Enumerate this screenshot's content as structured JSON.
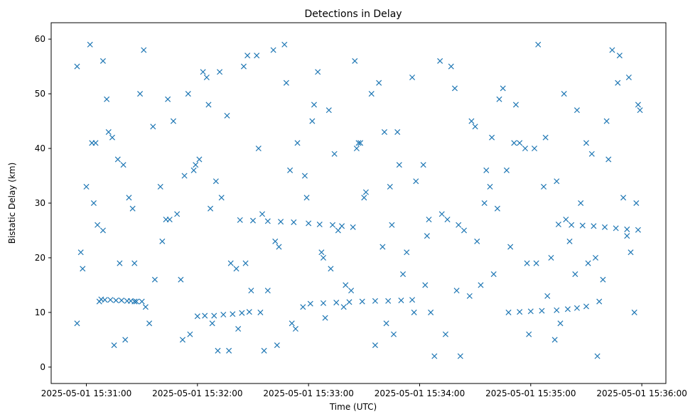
{
  "chart_data": {
    "type": "scatter",
    "title": "Detections in Delay",
    "xlabel": "Time (UTC)",
    "ylabel": "Bistatic Delay (km)",
    "marker": "x",
    "color": "#1f77b4",
    "x_format": "YYYY-MM-DD HH:MM:SS",
    "xlim": [
      "2025-05-01 15:30:41",
      "2025-05-01 15:36:13"
    ],
    "ylim": [
      -3,
      63
    ],
    "xticks": [
      "2025-05-01 15:31:00",
      "2025-05-01 15:32:00",
      "2025-05-01 15:33:00",
      "2025-05-01 15:34:00",
      "2025-05-01 15:35:00",
      "2025-05-01 15:36:00"
    ],
    "yticks": [
      0,
      10,
      20,
      30,
      40,
      50,
      60
    ],
    "grid": false,
    "legend": false,
    "series": [
      {
        "x": [
          "2025-05-01 15:31:08",
          "2025-05-01 15:31:10",
          "2025-05-01 15:31:13",
          "2025-05-01 15:31:16",
          "2025-05-01 15:31:19",
          "2025-05-01 15:31:22",
          "2025-05-01 15:31:24",
          "2025-05-01 15:31:26",
          "2025-05-01 15:32:00",
          "2025-05-01 15:32:04",
          "2025-05-01 15:32:09",
          "2025-05-01 15:32:14",
          "2025-05-01 15:32:19",
          "2025-05-01 15:32:24",
          "2025-05-01 15:32:28",
          "2025-05-01 15:32:23",
          "2025-05-01 15:32:30",
          "2025-05-01 15:32:38",
          "2025-05-01 15:32:45",
          "2025-05-01 15:32:52",
          "2025-05-01 15:33:00",
          "2025-05-01 15:33:06",
          "2025-05-01 15:33:13",
          "2025-05-01 15:33:18",
          "2025-05-01 15:33:24",
          "2025-05-01 15:33:01",
          "2025-05-01 15:33:08",
          "2025-05-01 15:33:15",
          "2025-05-01 15:33:22",
          "2025-05-01 15:33:29",
          "2025-05-01 15:33:36",
          "2025-05-01 15:33:43",
          "2025-05-01 15:33:50",
          "2025-05-01 15:33:56",
          "2025-05-01 15:34:48",
          "2025-05-01 15:34:54",
          "2025-05-01 15:35:00",
          "2025-05-01 15:35:06",
          "2025-05-01 15:35:14",
          "2025-05-01 15:35:20",
          "2025-05-01 15:35:25",
          "2025-05-01 15:35:30",
          "2025-05-01 15:35:15",
          "2025-05-01 15:35:22",
          "2025-05-01 15:35:28",
          "2025-05-01 15:35:34",
          "2025-05-01 15:35:40",
          "2025-05-01 15:35:46",
          "2025-05-01 15:35:52",
          "2025-05-01 15:35:58",
          "2025-05-01 15:30:55",
          "2025-05-01 15:30:57",
          "2025-05-01 15:30:55",
          "2025-05-01 15:31:04",
          "2025-05-01 15:31:07",
          "2025-05-01 15:31:09",
          "2025-05-01 15:31:14",
          "2025-05-01 15:31:17",
          "2025-05-01 15:31:21",
          "2025-05-01 15:31:26",
          "2025-05-01 15:31:31",
          "2025-05-01 15:31:36",
          "2025-05-01 15:31:40",
          "2025-05-01 15:31:45",
          "2025-05-01 15:31:51",
          "2025-05-01 15:31:55",
          "2025-05-01 15:31:58",
          "2025-05-01 15:32:03",
          "2025-05-01 15:32:07",
          "2025-05-01 15:32:11",
          "2025-05-01 15:32:16",
          "2025-05-01 15:32:21",
          "2025-05-01 15:32:27",
          "2025-05-01 15:32:33",
          "2025-05-01 15:32:38",
          "2025-05-01 15:32:42",
          "2025-05-01 15:32:48",
          "2025-05-01 15:32:53",
          "2025-05-01 15:32:58",
          "2025-05-01 15:33:03",
          "2025-05-01 15:33:08",
          "2025-05-01 15:33:14",
          "2025-05-01 15:33:19",
          "2025-05-01 15:33:25",
          "2025-05-01 15:33:30",
          "2025-05-01 15:33:36",
          "2025-05-01 15:33:41",
          "2025-05-01 15:33:45",
          "2025-05-01 15:33:51",
          "2025-05-01 15:33:56",
          "2025-05-01 15:34:02",
          "2025-05-01 15:34:06",
          "2025-05-01 15:34:12",
          "2025-05-01 15:34:17",
          "2025-05-01 15:34:22",
          "2025-05-01 15:34:28",
          "2025-05-01 15:34:33",
          "2025-05-01 15:34:38",
          "2025-05-01 15:34:43",
          "2025-05-01 15:34:49",
          "2025-05-01 15:34:54",
          "2025-05-01 15:34:59",
          "2025-05-01 15:35:04",
          "2025-05-01 15:35:09",
          "2025-05-01 15:35:14",
          "2025-05-01 15:35:19",
          "2025-05-01 15:35:25",
          "2025-05-01 15:35:31",
          "2025-05-01 15:35:36",
          "2025-05-01 15:35:42",
          "2025-05-01 15:35:47",
          "2025-05-01 15:35:52",
          "2025-05-01 15:35:57",
          "2025-05-01 15:31:02",
          "2025-05-01 15:31:12",
          "2025-05-01 15:31:23",
          "2025-05-01 15:31:34",
          "2025-05-01 15:31:47",
          "2025-05-01 15:32:05",
          "2025-05-01 15:32:18",
          "2025-05-01 15:32:35",
          "2025-05-01 15:32:50",
          "2025-05-01 15:33:11",
          "2025-05-01 15:33:27",
          "2025-05-01 15:33:44",
          "2025-05-01 15:34:08",
          "2025-05-01 15:34:24",
          "2025-05-01 15:34:40",
          "2025-05-01 15:35:02",
          "2025-05-01 15:35:18",
          "2025-05-01 15:35:37",
          "2025-05-01 15:35:54",
          "2025-05-01 15:31:05",
          "2025-05-01 15:31:18",
          "2025-05-01 15:31:29",
          "2025-05-01 15:31:43",
          "2025-05-01 15:31:59",
          "2025-05-01 15:32:13",
          "2025-05-01 15:32:29",
          "2025-05-01 15:32:44",
          "2025-05-01 15:33:02",
          "2025-05-01 15:33:20",
          "2025-05-01 15:33:38",
          "2025-05-01 15:33:53",
          "2025-05-01 15:34:14",
          "2025-05-01 15:34:31",
          "2025-05-01 15:34:47",
          "2025-05-01 15:35:08",
          "2025-05-01 15:35:27",
          "2025-05-01 15:35:44",
          "2025-05-01 15:35:59",
          "2025-05-01 15:30:58",
          "2025-05-01 15:31:11",
          "2025-05-01 15:31:27",
          "2025-05-01 15:31:41",
          "2025-05-01 15:31:56",
          "2025-05-01 15:32:10",
          "2025-05-01 15:32:25",
          "2025-05-01 15:32:41",
          "2025-05-01 15:32:57",
          "2025-05-01 15:33:12",
          "2025-05-01 15:33:31",
          "2025-05-01 15:33:48",
          "2025-05-01 15:34:05",
          "2025-05-01 15:34:20",
          "2025-05-01 15:34:36",
          "2025-05-01 15:34:52",
          "2025-05-01 15:35:11",
          "2025-05-01 15:35:33",
          "2025-05-01 15:35:50",
          "2025-05-01 15:31:00",
          "2025-05-01 15:31:15",
          "2025-05-01 15:31:32",
          "2025-05-01 15:31:49",
          "2025-05-01 15:32:06",
          "2025-05-01 15:32:22",
          "2025-05-01 15:32:36",
          "2025-05-01 15:32:54",
          "2025-05-01 15:33:09",
          "2025-05-01 15:33:26",
          "2025-05-01 15:33:42",
          "2025-05-01 15:33:58",
          "2025-05-01 15:34:15",
          "2025-05-01 15:34:30",
          "2025-05-01 15:34:45",
          "2025-05-01 15:35:03",
          "2025-05-01 15:35:21",
          "2025-05-01 15:35:39",
          "2025-05-01 15:35:56",
          "2025-05-01 15:31:06",
          "2025-05-01 15:31:20",
          "2025-05-01 15:31:37",
          "2025-05-01 15:31:53",
          "2025-05-01 15:32:08",
          "2025-05-01 15:32:26",
          "2025-05-01 15:32:43",
          "2025-05-01 15:32:59",
          "2025-05-01 15:33:16",
          "2025-05-01 15:33:34",
          "2025-05-01 15:33:49",
          "2025-05-01 15:34:04",
          "2025-05-01 15:34:19",
          "2025-05-01 15:34:35",
          "2025-05-01 15:34:51",
          "2025-05-01 15:35:07",
          "2025-05-01 15:35:24",
          "2025-05-01 15:35:41",
          "2025-05-01 15:35:58",
          "2025-05-01 15:31:03",
          "2025-05-01 15:31:25",
          "2025-05-01 15:31:44",
          "2025-05-01 15:32:01",
          "2025-05-01 15:32:17",
          "2025-05-01 15:32:34",
          "2025-05-01 15:32:51",
          "2025-05-01 15:33:07",
          "2025-05-01 15:33:23",
          "2025-05-01 15:33:40",
          "2025-05-01 15:33:57",
          "2025-05-01 15:34:11",
          "2025-05-01 15:34:27",
          "2025-05-01 15:34:42",
          "2025-05-01 15:34:58",
          "2025-05-01 15:35:16",
          "2025-05-01 15:35:35",
          "2025-05-01 15:35:53",
          "2025-05-01 15:31:09",
          "2025-05-01 15:31:30",
          "2025-05-01 15:31:52",
          "2025-05-01 15:32:12",
          "2025-05-01 15:32:32",
          "2025-05-01 15:32:47",
          "2025-05-01 15:33:05",
          "2025-05-01 15:33:28",
          "2025-05-01 15:33:46",
          "2025-05-01 15:34:03",
          "2025-05-01 15:34:21",
          "2025-05-01 15:34:39",
          "2025-05-01 15:34:57",
          "2025-05-01 15:35:13",
          "2025-05-01 15:35:30",
          "2025-05-01 15:35:48"
        ],
        "y": [
          12.4,
          12.3,
          12.3,
          12.2,
          12.2,
          12.1,
          12.1,
          12.0,
          9.3,
          9.4,
          9.4,
          9.6,
          9.7,
          9.9,
          10.1,
          26.9,
          26.8,
          26.7,
          26.6,
          26.5,
          26.3,
          26.1,
          26.0,
          25.8,
          25.6,
          11.6,
          11.7,
          11.8,
          11.9,
          12.0,
          12.1,
          12.1,
          12.2,
          12.3,
          10.0,
          10.1,
          10.2,
          10.3,
          10.4,
          10.6,
          10.8,
          11.1,
          26.1,
          26.0,
          25.9,
          25.8,
          25.6,
          25.4,
          25.2,
          25.1,
          55,
          21,
          8,
          30,
          12,
          25,
          42,
          38,
          5,
          19,
          58,
          44,
          33,
          27,
          16,
          50,
          36,
          54,
          29,
          3,
          46,
          18,
          57,
          40,
          14,
          23,
          52,
          7,
          35,
          48,
          20,
          39,
          11,
          56,
          31,
          4,
          43,
          26,
          17,
          53,
          37,
          10,
          28,
          55,
          2,
          45,
          15,
          33,
          49,
          22,
          41,
          6,
          59,
          13,
          34,
          27,
          47,
          19,
          2,
          38,
          52,
          24,
          30,
          59,
          43,
          31,
          8,
          45,
          53,
          19,
          28,
          36,
          47,
          41,
          33,
          2,
          25,
          17,
          40,
          50,
          12,
          21,
          41,
          19,
          50,
          27,
          37,
          31,
          14,
          22,
          45,
          15,
          52,
          21,
          6,
          23,
          36,
          42,
          30,
          58,
          47,
          18,
          49,
          12,
          23,
          6,
          34,
          55,
          58,
          11,
          18,
          32,
          43,
          27,
          14,
          36,
          48,
          20,
          39,
          31,
          33,
          4,
          11,
          28,
          48,
          7,
          3,
          41,
          9,
          40,
          8,
          34,
          27,
          44,
          51,
          19,
          23,
          16,
          10,
          26,
          37,
          16,
          35,
          8,
          19,
          4,
          31,
          25,
          50,
          37,
          24,
          51,
          30,
          41,
          33,
          17,
          45,
          48,
          41,
          29,
          49,
          38,
          3,
          10,
          8,
          21,
          14,
          22,
          10,
          56,
          13,
          29,
          19,
          8,
          20,
          53,
          56,
          12,
          5,
          54,
          57,
          59,
          54,
          41,
          6,
          15,
          26,
          42,
          40,
          5,
          41,
          57
        ]
      }
    ]
  }
}
